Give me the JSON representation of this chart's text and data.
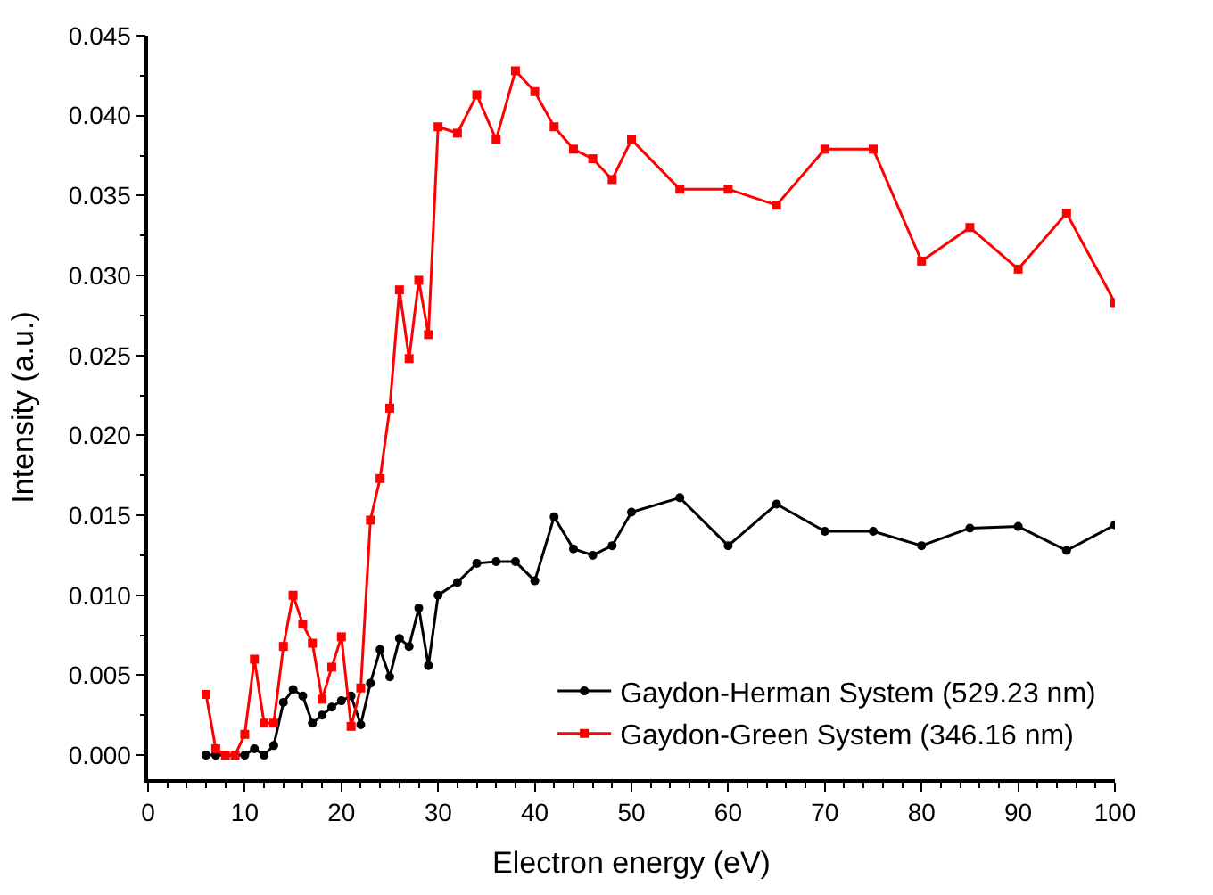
{
  "chart_data": {
    "type": "line",
    "xlabel": "Electron energy (eV)",
    "ylabel": "Intensity (a.u.)",
    "x": [
      6,
      7,
      8,
      9,
      10,
      11,
      12,
      13,
      14,
      15,
      16,
      17,
      18,
      19,
      20,
      21,
      22,
      23,
      24,
      25,
      26,
      27,
      28,
      29,
      30,
      32,
      34,
      36,
      38,
      40,
      42,
      44,
      46,
      48,
      50,
      55,
      60,
      65,
      70,
      75,
      80,
      85,
      90,
      95,
      100
    ],
    "series": [
      {
        "name": "Gaydon-Herman System (529.23 nm)",
        "color": "#000000",
        "marker": "circle",
        "values": [
          0,
          0,
          0,
          0,
          0,
          0.0004,
          0,
          0.0006,
          0.0033,
          0.0041,
          0.0037,
          0.002,
          0.0025,
          0.003,
          0.0034,
          0.0037,
          0.0019,
          0.0045,
          0.0066,
          0.0049,
          0.0073,
          0.0068,
          0.0092,
          0.0056,
          0.01,
          0.0108,
          0.012,
          0.0121,
          0.0121,
          0.0109,
          0.0149,
          0.0129,
          0.0125,
          0.0131,
          0.0152,
          0.0161,
          0.0131,
          0.0157,
          0.014,
          0.014,
          0.0131,
          0.0142,
          0.0143,
          0.0128,
          0.0144
        ]
      },
      {
        "name": "Gaydon-Green System (346.16 nm)",
        "color": "#ff0000",
        "marker": "square",
        "values": [
          0.0038,
          0.0004,
          0,
          0,
          0.0013,
          0.006,
          0.002,
          0.002,
          0.0068,
          0.01,
          0.0082,
          0.007,
          0.0035,
          0.0055,
          0.0074,
          0.0018,
          0.0042,
          0.0147,
          0.0173,
          0.0217,
          0.0291,
          0.0248,
          0.0297,
          0.0263,
          0.0393,
          0.0389,
          0.0413,
          0.0385,
          0.0428,
          0.0415,
          0.0393,
          0.0379,
          0.0373,
          0.036,
          0.0385,
          0.0354,
          0.0354,
          0.0344,
          0.0379,
          0.0379,
          0.0309,
          0.033,
          0.0304,
          0.0339,
          0.0283
        ]
      }
    ],
    "xlim": [
      0,
      100
    ],
    "xticks": [
      0,
      10,
      20,
      30,
      40,
      50,
      60,
      70,
      80,
      90,
      100
    ],
    "ylim": [
      -0.0015,
      0.045
    ],
    "yticks": [
      {
        "value": 0,
        "label": "0.000"
      },
      {
        "value": 0.005,
        "label": "0.005"
      },
      {
        "value": 0.01,
        "label": "0.010"
      },
      {
        "value": 0.015,
        "label": "0.015"
      },
      {
        "value": 0.02,
        "label": "0.020"
      },
      {
        "value": 0.025,
        "label": "0.025"
      },
      {
        "value": 0.03,
        "label": "0.030"
      },
      {
        "value": 0.035,
        "label": "0.035"
      },
      {
        "value": 0.04,
        "label": "0.040"
      },
      {
        "value": 0.045,
        "label": "0.045"
      }
    ],
    "legend": "bottom right",
    "line_style": "solid"
  }
}
